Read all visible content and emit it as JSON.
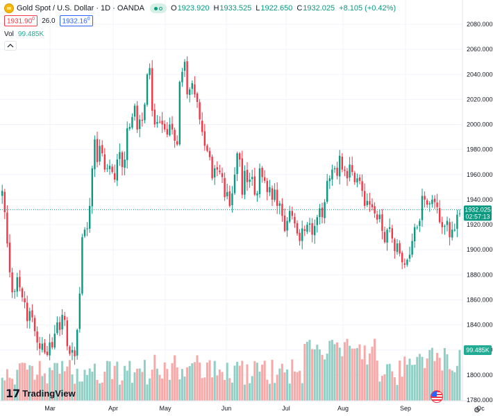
{
  "legend": {
    "symbol": "Gold Spot / U.S. Dollar · 1D · OANDA",
    "o_label": "O",
    "o_value": "1923.920",
    "h_label": "H",
    "h_value": "1933.525",
    "l_label": "L",
    "l_value": "1922.650",
    "c_label": "C",
    "c_value": "1932.025",
    "change": "+8.105 (+0.42%)",
    "sell_price": "1931.90",
    "sell_sup": "0",
    "spread": "26.0",
    "buy_price": "1932.16",
    "buy_sup": "0",
    "vol_label": "Vol",
    "vol_value": "99.485K"
  },
  "brand": "TradingView",
  "colors": {
    "up": "#089981",
    "down": "#f23645",
    "vol_up": "#8fcfc5",
    "vol_down": "#f7a9a7",
    "grid": "#f0f3fa"
  },
  "chart_data": {
    "type": "candlestick",
    "title": "Gold Spot / U.S. Dollar · 1D · OANDA",
    "y_axis": {
      "ticks": [
        2080,
        2060,
        2040,
        2020,
        2000,
        1980,
        1960,
        1940,
        1920,
        1900,
        1880,
        1860,
        1840,
        1820,
        1800,
        1780
      ],
      "labels": [
        "2080.000",
        "2060.000",
        "2040.000",
        "2020.000",
        "2000.000",
        "1980.000",
        "1960.000",
        "1940.000",
        "1920.000",
        "1900.000",
        "1880.000",
        "1860.000",
        "1840.000",
        "1820.000",
        "1800.000",
        "1780.000"
      ],
      "ylim": [
        1778,
        2088
      ]
    },
    "x_axis": {
      "labels": [
        "Mar",
        "Apr",
        "May",
        "Jun",
        "Jul",
        "Aug",
        "Sep",
        "Oc"
      ]
    },
    "last_price": {
      "value": 1932.025,
      "label": "1932.025",
      "countdown": "02:57:13"
    },
    "volume_label": "99.485K",
    "close_prices": [
      1947,
      1930,
      1905,
      1882,
      1866,
      1867,
      1878,
      1870,
      1862,
      1858,
      1843,
      1851,
      1846,
      1835,
      1826,
      1821,
      1825,
      1818,
      1816,
      1826,
      1822,
      1833,
      1842,
      1836,
      1848,
      1844,
      1823,
      1817,
      1820,
      1815,
      1836,
      1865,
      1910,
      1916,
      1917,
      1935,
      1965,
      1988,
      1970,
      1983,
      1977,
      1964,
      1965,
      1967,
      1962,
      1956,
      1972,
      1978,
      1966,
      1972,
      1997,
      1998,
      2006,
      2015,
      1996,
      2004,
      2003,
      2016,
      2040,
      2045,
      2011,
      2000,
      2002,
      2002,
      2000,
      1996,
      1992,
      2000,
      1996,
      1987,
      1984,
      2034,
      2042,
      2050,
      2024,
      2028,
      2033,
      2024,
      2018,
      2004,
      1994,
      1983,
      1979,
      1974,
      1957,
      1965,
      1964,
      1962,
      1958,
      1942,
      1946,
      1935,
      1945,
      1960,
      1977,
      1972,
      1944,
      1963,
      1954,
      1956,
      1958,
      1944,
      1945,
      1965,
      1958,
      1955,
      1946,
      1950,
      1940,
      1948,
      1935,
      1937,
      1927,
      1915,
      1923,
      1931,
      1927,
      1921,
      1913,
      1907,
      1917,
      1915,
      1920,
      1921,
      1912,
      1919,
      1926,
      1933,
      1926,
      1938,
      1955,
      1957,
      1964,
      1965,
      1959,
      1975,
      1964,
      1963,
      1957,
      1968,
      1962,
      1954,
      1957,
      1955,
      1947,
      1935,
      1939,
      1936,
      1934,
      1929,
      1924,
      1928,
      1915,
      1906,
      1916,
      1918,
      1909,
      1899,
      1905,
      1897,
      1890,
      1888,
      1892,
      1896,
      1907,
      1918,
      1918,
      1923,
      1943,
      1940,
      1936,
      1937,
      1940,
      1938,
      1934,
      1922,
      1918,
      1919,
      1923,
      1910,
      1916,
      1916,
      1928,
      1929
    ]
  }
}
